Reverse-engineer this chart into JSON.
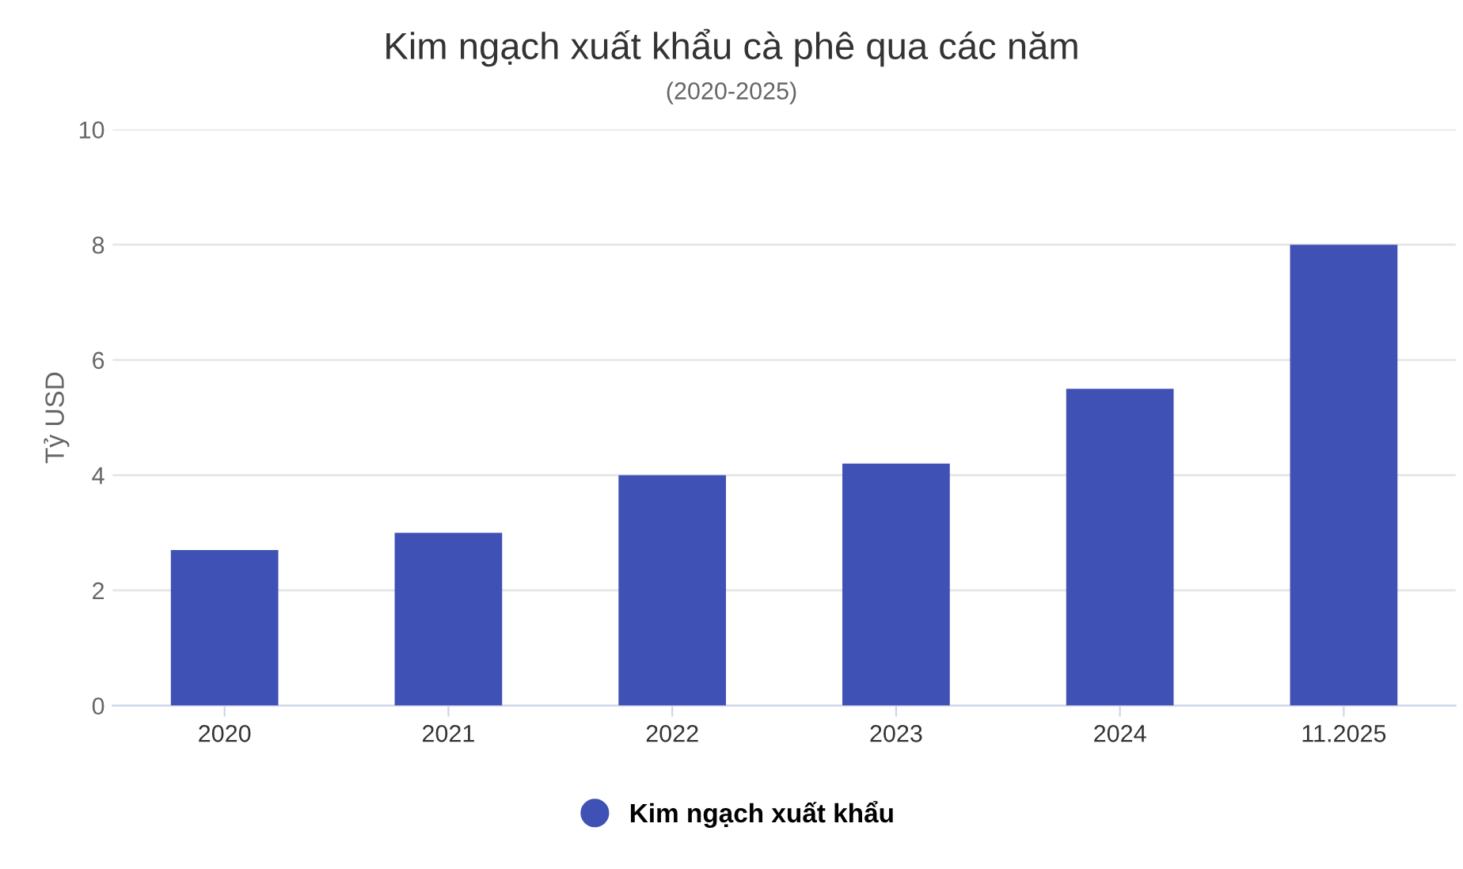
{
  "chart_data": {
    "type": "bar",
    "title": "Kim ngạch xuất khẩu cà phê qua các năm",
    "subtitle": "(2020-2025)",
    "ylabel": "Tỷ USD",
    "categories": [
      "2020",
      "2021",
      "2022",
      "2023",
      "2024",
      "11.2025"
    ],
    "series": [
      {
        "name": "Kim ngạch xuất khẩu",
        "color": "#3f51b5",
        "values": [
          2.7,
          3.0,
          4.0,
          4.2,
          5.5,
          8.0
        ]
      }
    ],
    "ylim": [
      0,
      10
    ],
    "yticks": [
      0,
      2,
      4,
      6,
      8,
      10
    ],
    "grid": "y",
    "legend": "bottom"
  }
}
